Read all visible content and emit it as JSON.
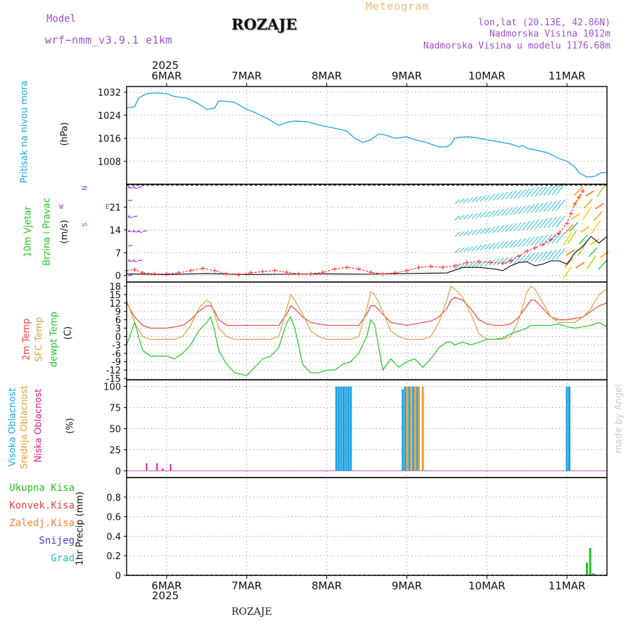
{
  "header": {
    "model_label": "Model",
    "model_name": "wrf−nmm_v3.9.1  e1km",
    "title": "ROZAJE",
    "subtitle": "Meteogram",
    "coords": "lon,lat (20.13E, 42.86N)",
    "altitude": "Nadmorska Visina 1012m",
    "model_altitude": "Nadmorska Visina u modelu 1176.68m"
  },
  "footer": {
    "station": "ROZAJE",
    "watermark": "made by Angel"
  },
  "time_axis": {
    "year_top": "2025",
    "year_bottom": "2025",
    "dates": [
      "6MAR",
      "7MAR",
      "8MAR",
      "9MAR",
      "10MAR",
      "11MAR"
    ],
    "day_start": 5.5,
    "day_end": 11.5
  },
  "colors": {
    "pressure": "#1ba3e0",
    "t2m": "#e84545",
    "sfc": "#e0a040",
    "dewpt": "#22c422",
    "cloud_high": "#1ba3e0",
    "cloud_mid": "#e0a040",
    "cloud_low": "#e0207a",
    "precip_total": "#22c422",
    "precip_conv": "#e84545",
    "precip_frozen": "#ff8030",
    "precip_snow": "#4040e0",
    "precip_grad": "#20c0c0",
    "wind_violet": "#8a2be2",
    "wind_blue": "#3050e0",
    "wind_cyan": "#20c0d0",
    "gust_marker": "#ff3030",
    "grid": "#888888"
  },
  "panels": {
    "pressure": {
      "labels": [
        "Pritisak na nivou mora",
        "(hPa)"
      ]
    },
    "wind": {
      "labels": [
        "10m Vjetar",
        "Brzina i Pravac",
        "(m/s)"
      ],
      "compass": {
        "n": "N",
        "s": "S",
        "w": "W",
        "e": "E"
      }
    },
    "temp": {
      "labels": [
        "2m Temp",
        "SFC Temp",
        "dewpt Temp",
        "(C)"
      ]
    },
    "cloud": {
      "labels": [
        "Visoka Oblacnost",
        "Srednja Oblacnost",
        "Niska Oblacnost",
        "(%)"
      ]
    },
    "precip": {
      "legend": [
        "Ukupna Kisa",
        "Konvek.Kisa",
        "Zaledj.Kisa",
        "Snijeg",
        "Grad"
      ],
      "ylabel": "1hr Precip (mm)"
    }
  },
  "chart_data": [
    {
      "type": "line",
      "name": "pressure",
      "ylabel": "(hPa)",
      "ylim": [
        1000,
        1034
      ],
      "yticks": [
        1008,
        1016,
        1024,
        1032
      ],
      "x": [
        5.5,
        5.6,
        5.65,
        5.75,
        5.85,
        6.0,
        6.1,
        6.25,
        6.4,
        6.5,
        6.6,
        6.65,
        6.75,
        6.85,
        7.0,
        7.1,
        7.25,
        7.4,
        7.5,
        7.6,
        7.75,
        7.85,
        8.0,
        8.1,
        8.25,
        8.35,
        8.45,
        8.55,
        8.65,
        8.75,
        8.85,
        9.0,
        9.1,
        9.25,
        9.4,
        9.5,
        9.55,
        9.6,
        9.65,
        9.75,
        9.85,
        10.0,
        10.1,
        10.2,
        10.3,
        10.4,
        10.45,
        10.5,
        10.6,
        10.75,
        10.9,
        11.0,
        11.1,
        11.15,
        11.25,
        11.35,
        11.42,
        11.5
      ],
      "y": [
        1026.5,
        1027,
        1030,
        1031.5,
        1031.8,
        1031.5,
        1030.5,
        1030,
        1028,
        1026,
        1026.5,
        1029,
        1028.8,
        1028.5,
        1026,
        1025,
        1023,
        1020.5,
        1021.5,
        1022,
        1021.8,
        1021,
        1020,
        1019.5,
        1018.5,
        1016,
        1014.5,
        1015.5,
        1017.5,
        1017,
        1016,
        1016.5,
        1015.5,
        1014.5,
        1013,
        1013,
        1014,
        1016,
        1016.3,
        1016.5,
        1016.3,
        1015.5,
        1015,
        1014.5,
        1014,
        1013,
        1013.5,
        1012.5,
        1012,
        1011,
        1009,
        1008,
        1006,
        1004,
        1002.5,
        1002.8,
        1004,
        1004
      ]
    },
    {
      "type": "line",
      "name": "wind",
      "ylabel": "(m/s)",
      "ylim": [
        -2,
        28
      ],
      "yticks": [
        0,
        7,
        14,
        21
      ],
      "series": [
        {
          "name": "gust",
          "x": [
            5.5,
            5.6,
            5.7,
            5.85,
            6.0,
            6.15,
            6.3,
            6.45,
            6.6,
            6.75,
            6.9,
            7.05,
            7.2,
            7.35,
            7.5,
            7.65,
            7.8,
            7.95,
            8.1,
            8.25,
            8.4,
            8.55,
            8.7,
            8.85,
            9.0,
            9.15,
            9.3,
            9.45,
            9.6,
            9.75,
            9.9,
            10.05,
            10.2,
            10.3,
            10.4,
            10.5,
            10.6,
            10.7,
            10.8,
            10.9,
            11.0,
            11.05,
            11.1,
            11.15,
            11.2
          ],
          "values": [
            1.5,
            1.8,
            0.8,
            0.5,
            0.5,
            0.8,
            1.5,
            2.2,
            1.5,
            0.5,
            0.2,
            0.8,
            1.2,
            1.5,
            1.0,
            0.5,
            0.5,
            1.0,
            2.0,
            2.5,
            2.0,
            1.0,
            0.5,
            0.8,
            1.5,
            2.5,
            2.8,
            2.5,
            3.0,
            4.0,
            4.3,
            4.0,
            3.8,
            4.5,
            6.0,
            7.5,
            8.5,
            9.5,
            11,
            13,
            16,
            19,
            22,
            24,
            26
          ]
        },
        {
          "name": "mean",
          "x": [
            5.5,
            6.0,
            6.5,
            7.0,
            7.5,
            8.0,
            8.5,
            9.0,
            9.5,
            9.7,
            9.9,
            10.1,
            10.2,
            10.3,
            10.4,
            10.5,
            10.6,
            10.7,
            10.8,
            10.9,
            11.0,
            11.1,
            11.2,
            11.3,
            11.4,
            11.5
          ],
          "values": [
            0.5,
            0.3,
            0.6,
            0.3,
            0.4,
            0.5,
            0.4,
            0.6,
            0.8,
            2.5,
            2.5,
            2.0,
            1.5,
            3.0,
            4.0,
            4.2,
            3.0,
            3.5,
            4.5,
            4.5,
            3.5,
            7.0,
            9.0,
            12.0,
            10.0,
            12.0
          ]
        }
      ]
    },
    {
      "type": "line",
      "name": "temperature",
      "ylabel": "(C)",
      "ylim": [
        -15,
        18
      ],
      "yticks": [
        -15,
        -12,
        -9,
        -6,
        -3,
        0,
        3,
        6,
        9,
        12,
        15,
        18
      ],
      "series": [
        {
          "name": "2m Temp",
          "x": [
            5.5,
            5.6,
            5.7,
            5.8,
            5.9,
            6.0,
            6.1,
            6.2,
            6.3,
            6.4,
            6.5,
            6.55,
            6.6,
            6.65,
            6.75,
            6.85,
            7.0,
            7.1,
            7.2,
            7.3,
            7.4,
            7.5,
            7.55,
            7.6,
            7.7,
            7.8,
            7.9,
            8.0,
            8.1,
            8.2,
            8.3,
            8.4,
            8.5,
            8.55,
            8.6,
            8.7,
            8.8,
            8.9,
            9.0,
            9.1,
            9.2,
            9.3,
            9.4,
            9.5,
            9.55,
            9.6,
            9.7,
            9.8,
            9.9,
            10.0,
            10.1,
            10.2,
            10.3,
            10.4,
            10.5,
            10.55,
            10.6,
            10.7,
            10.8,
            10.9,
            11.0,
            11.1,
            11.2,
            11.3,
            11.4,
            11.5
          ],
          "values": [
            12,
            7,
            4,
            3,
            3,
            3,
            3.5,
            4,
            6,
            9,
            11,
            11,
            9,
            6,
            4,
            4,
            4,
            4,
            4,
            4,
            4,
            8,
            11,
            10,
            7,
            5,
            4.5,
            4,
            4,
            4,
            4,
            4,
            8,
            11,
            11,
            8,
            5,
            4.5,
            4,
            4.5,
            5,
            5.5,
            7,
            10,
            13,
            14,
            13,
            10,
            6,
            4.5,
            4,
            4,
            4.5,
            7,
            11,
            13,
            13,
            10,
            7,
            6,
            6,
            6.5,
            7,
            9,
            11,
            12
          ]
        },
        {
          "name": "SFC Temp",
          "x": [
            5.5,
            5.6,
            5.7,
            5.8,
            5.9,
            6.0,
            6.1,
            6.2,
            6.3,
            6.4,
            6.5,
            6.55,
            6.6,
            6.65,
            6.75,
            6.85,
            7.0,
            7.1,
            7.2,
            7.3,
            7.4,
            7.5,
            7.55,
            7.6,
            7.7,
            7.8,
            7.9,
            8.0,
            8.1,
            8.2,
            8.3,
            8.4,
            8.5,
            8.55,
            8.6,
            8.7,
            8.8,
            8.9,
            9.0,
            9.1,
            9.2,
            9.3,
            9.4,
            9.5,
            9.55,
            9.6,
            9.7,
            9.8,
            9.9,
            10.0,
            10.1,
            10.2,
            10.3,
            10.4,
            10.5,
            10.55,
            10.6,
            10.7,
            10.8,
            10.9,
            11.0,
            11.1,
            11.2,
            11.3,
            11.4,
            11.5
          ],
          "values": [
            13,
            5,
            0,
            -1,
            -1,
            -1,
            -1,
            0,
            4,
            10,
            13,
            12,
            8,
            3,
            0,
            -1,
            -1,
            -1,
            -1,
            -1,
            0,
            10,
            15,
            13,
            8,
            2,
            0,
            -1,
            -1,
            -1,
            -1,
            0,
            10,
            16,
            15,
            9,
            2,
            0,
            -1,
            -1,
            -1,
            0,
            5,
            13,
            18,
            17,
            14,
            8,
            1,
            -1,
            -1,
            -1,
            0,
            6,
            16,
            18,
            17,
            12,
            7,
            5,
            5,
            5,
            7,
            10,
            15,
            17
          ]
        },
        {
          "name": "dewpt Temp",
          "x": [
            5.5,
            5.6,
            5.7,
            5.8,
            5.9,
            6.0,
            6.1,
            6.2,
            6.3,
            6.4,
            6.5,
            6.55,
            6.6,
            6.65,
            6.75,
            6.85,
            7.0,
            7.1,
            7.2,
            7.3,
            7.4,
            7.5,
            7.55,
            7.6,
            7.7,
            7.8,
            7.9,
            8.0,
            8.1,
            8.2,
            8.3,
            8.4,
            8.5,
            8.55,
            8.6,
            8.7,
            8.8,
            8.9,
            9.0,
            9.1,
            9.2,
            9.3,
            9.4,
            9.5,
            9.55,
            9.6,
            9.7,
            9.8,
            9.9,
            10.0,
            10.1,
            10.2,
            10.3,
            10.4,
            10.5,
            10.55,
            10.6,
            10.7,
            10.8,
            10.9,
            11.0,
            11.1,
            11.2,
            11.3,
            11.4,
            11.5
          ],
          "values": [
            -3,
            5,
            -5,
            -7,
            -7,
            -7,
            -8,
            -6,
            -3,
            2,
            5,
            7,
            2,
            -5,
            -10,
            -13,
            -14,
            -11,
            -8,
            -7,
            -4,
            5,
            7,
            3,
            -10,
            -13,
            -13,
            -12,
            -12,
            -10,
            -9,
            -6,
            0,
            6,
            4,
            -12,
            -8,
            -11,
            -9,
            -8,
            -11,
            -8,
            -4,
            -2,
            -2,
            -3,
            -2,
            -3,
            -2,
            -1,
            -1,
            -0.5,
            1,
            2,
            3,
            4,
            4,
            4,
            4,
            4.5,
            3.5,
            3,
            3.5,
            4,
            5,
            3.5
          ]
        }
      ]
    },
    {
      "type": "bar",
      "name": "cloud",
      "ylabel": "(%)",
      "ylim": [
        0,
        100
      ],
      "yticks": [
        0,
        25,
        50,
        75,
        100
      ],
      "series": [
        {
          "name": "Visoka Oblacnost",
          "x": [
            8.12,
            8.15,
            8.18,
            8.21,
            8.24,
            8.27,
            8.3,
            8.95,
            8.98,
            9.03,
            9.08,
            9.13,
            11.0,
            11.03
          ],
          "values": [
            100,
            100,
            100,
            100,
            100,
            100,
            100,
            97,
            100,
            100,
            100,
            100,
            100,
            100
          ]
        },
        {
          "name": "Srednja Oblacnost",
          "x": [
            9.0,
            9.05,
            9.1,
            9.15,
            9.2
          ],
          "values": [
            100,
            100,
            100,
            100,
            100
          ]
        },
        {
          "name": "Niska Oblacnost",
          "x": [
            5.75,
            5.88,
            6.05,
            5.95
          ],
          "values": [
            9,
            9,
            8,
            3
          ]
        }
      ]
    },
    {
      "type": "bar",
      "name": "precipitation",
      "ylabel": "1hr Precip (mm)",
      "ylim": [
        0,
        1.0
      ],
      "yticks": [
        0,
        0.2,
        0.4,
        0.6,
        0.8
      ],
      "series": [
        {
          "name": "Ukupna Kisa",
          "x": [
            11.25,
            11.29,
            11.33
          ],
          "values": [
            0.13,
            0.28,
            0.02
          ]
        }
      ]
    }
  ]
}
